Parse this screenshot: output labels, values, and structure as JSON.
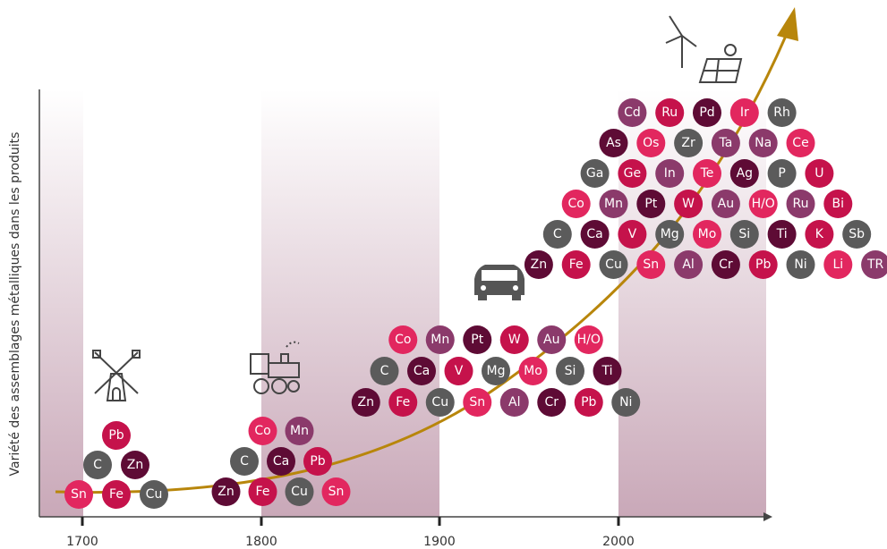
{
  "y_axis_label": "Variété des assemblages métalliques dans les produits",
  "x_ticks": [
    "1700",
    "1800",
    "1900",
    "2000"
  ],
  "palette": {
    "gray": "#5b5b5b",
    "dark": "#5e0b35",
    "mauve": "#8b3a6b",
    "pink": "#e2275f",
    "crimson": "#c5124b"
  },
  "groups": [
    {
      "rows": [
        [
          [
            "Pb",
            "crimson"
          ]
        ],
        [
          [
            "C",
            "gray"
          ],
          [
            "Zn",
            "dark"
          ]
        ],
        [
          [
            "Sn",
            "pink"
          ],
          [
            "Fe",
            "crimson"
          ],
          [
            "Cu",
            "gray"
          ]
        ]
      ]
    },
    {
      "rows": [
        [
          [
            "Co",
            "pink"
          ],
          [
            "Mn",
            "mauve"
          ]
        ],
        [
          [
            "C",
            "gray"
          ],
          [
            "Ca",
            "dark"
          ],
          [
            "Pb",
            "crimson"
          ]
        ],
        [
          [
            "Zn",
            "dark"
          ],
          [
            "Fe",
            "crimson"
          ],
          [
            "Cu",
            "gray"
          ],
          [
            "Sn",
            "pink"
          ]
        ]
      ]
    },
    {
      "rows": [
        [
          [
            "Co",
            "pink"
          ],
          [
            "Mn",
            "mauve"
          ],
          [
            "Pt",
            "dark"
          ],
          [
            "W",
            "crimson"
          ],
          [
            "Au",
            "mauve"
          ],
          [
            "H/O",
            "pink"
          ]
        ],
        [
          [
            "C",
            "gray"
          ],
          [
            "Ca",
            "dark"
          ],
          [
            "V",
            "crimson"
          ],
          [
            "Mg",
            "gray"
          ],
          [
            "Mo",
            "pink"
          ],
          [
            "Si",
            "gray"
          ],
          [
            "Ti",
            "dark"
          ]
        ],
        [
          [
            "Zn",
            "dark"
          ],
          [
            "Fe",
            "crimson"
          ],
          [
            "Cu",
            "gray"
          ],
          [
            "Sn",
            "pink"
          ],
          [
            "Al",
            "mauve"
          ],
          [
            "Cr",
            "dark"
          ],
          [
            "Pb",
            "crimson"
          ],
          [
            "Ni",
            "gray"
          ]
        ]
      ]
    },
    {
      "rows": [
        [
          [
            "Cd",
            "mauve"
          ],
          [
            "Ru",
            "crimson"
          ],
          [
            "Pd",
            "dark"
          ],
          [
            "Ir",
            "pink"
          ],
          [
            "Rh",
            "gray"
          ]
        ],
        [
          [
            "As",
            "dark"
          ],
          [
            "Os",
            "pink"
          ],
          [
            "Zr",
            "gray"
          ],
          [
            "Ta",
            "mauve"
          ],
          [
            "Na",
            "mauve"
          ],
          [
            "Ce",
            "pink"
          ]
        ],
        [
          [
            "Ga",
            "gray"
          ],
          [
            "Ge",
            "crimson"
          ],
          [
            "In",
            "mauve"
          ],
          [
            "Te",
            "pink"
          ],
          [
            "Ag",
            "dark"
          ],
          [
            "P",
            "gray"
          ],
          [
            "U",
            "crimson"
          ]
        ],
        [
          [
            "Co",
            "pink"
          ],
          [
            "Mn",
            "mauve"
          ],
          [
            "Pt",
            "dark"
          ],
          [
            "W",
            "crimson"
          ],
          [
            "Au",
            "mauve"
          ],
          [
            "H/O",
            "pink"
          ],
          [
            "Ru",
            "mauve"
          ],
          [
            "Bi",
            "crimson"
          ]
        ],
        [
          [
            "C",
            "gray"
          ],
          [
            "Ca",
            "dark"
          ],
          [
            "V",
            "crimson"
          ],
          [
            "Mg",
            "gray"
          ],
          [
            "Mo",
            "pink"
          ],
          [
            "Si",
            "gray"
          ],
          [
            "Ti",
            "dark"
          ],
          [
            "K",
            "crimson"
          ],
          [
            "Sb",
            "gray"
          ]
        ],
        [
          [
            "Zn",
            "dark"
          ],
          [
            "Fe",
            "crimson"
          ],
          [
            "Cu",
            "gray"
          ],
          [
            "Sn",
            "pink"
          ],
          [
            "Al",
            "mauve"
          ],
          [
            "Cr",
            "dark"
          ],
          [
            "Pb",
            "crimson"
          ],
          [
            "Ni",
            "gray"
          ],
          [
            "Li",
            "pink"
          ],
          [
            "TR",
            "mauve"
          ]
        ]
      ]
    }
  ]
}
